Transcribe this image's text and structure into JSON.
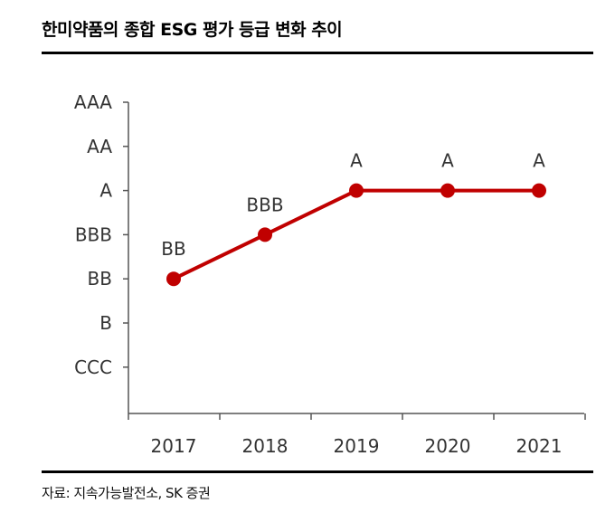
{
  "title": "한미약품의 종합 ESG 평가 등급 변화 추이",
  "source": "자료: 지속가능발전소, SK 증권",
  "colors": {
    "series": "#c00000",
    "axis": "#555555",
    "label": "#333333"
  },
  "chart_data": {
    "type": "line",
    "y_categories": [
      "CCC",
      "B",
      "BB",
      "BBB",
      "A",
      "AA",
      "AAA"
    ],
    "x": [
      "2017",
      "2018",
      "2019",
      "2020",
      "2021"
    ],
    "series": [
      {
        "values": [
          "BB",
          "BBB",
          "A",
          "A",
          "A"
        ]
      }
    ],
    "data_labels": [
      "BB",
      "BBB",
      "A",
      "A",
      "A"
    ],
    "grid": false,
    "legend": "none"
  }
}
